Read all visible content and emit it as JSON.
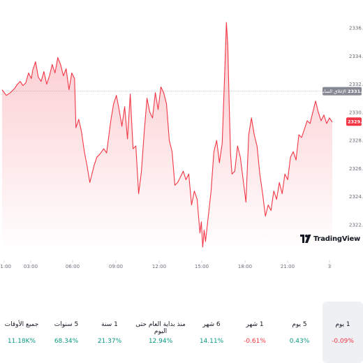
{
  "chart_data": {
    "type": "area",
    "x_ticks": [
      "01:00",
      "03:00",
      "06:00",
      "09:00",
      "12:00",
      "15:00",
      "18:00",
      "21:00",
      "3"
    ],
    "y_ticks": [
      "2322.00",
      "2324.00",
      "2326.00",
      "2328.00",
      "2330.00",
      "2332.00",
      "2334.00",
      "2336.00"
    ],
    "ylim": [
      2320.0,
      2337.0
    ],
    "x": [
      0,
      6,
      12,
      18,
      22,
      26,
      30,
      34,
      38,
      42,
      44,
      48,
      52,
      56,
      60,
      64,
      68,
      72,
      76,
      80,
      84,
      88,
      92,
      96,
      100,
      104,
      106,
      110,
      114,
      118,
      122,
      126,
      128,
      132,
      136,
      140,
      146,
      150,
      156,
      160,
      164,
      168,
      172,
      176,
      180,
      184,
      188,
      192,
      196,
      200,
      204,
      208,
      212,
      216,
      220,
      224,
      228,
      232,
      236,
      240,
      244,
      248,
      252,
      256,
      260,
      264,
      268,
      272,
      276,
      280,
      284,
      286,
      288,
      290,
      292,
      296,
      300,
      304,
      308,
      312,
      316,
      320,
      322,
      324,
      326,
      328,
      330,
      334,
      338,
      342,
      346,
      350,
      354,
      358,
      362,
      366,
      370,
      374,
      378,
      382,
      386,
      390,
      394,
      398,
      402,
      406,
      410,
      414,
      418,
      422,
      426,
      430,
      434,
      438,
      442,
      446,
      450,
      454,
      458,
      462,
      466,
      470,
      474
    ],
    "values": [
      2331.6,
      2331.2,
      2331.4,
      2331.7,
      2332.0,
      2332.2,
      2331.9,
      2332.1,
      2332.8,
      2332.4,
      2333.0,
      2333.6,
      2332.5,
      2332.2,
      2332.9,
      2332.0,
      2332.6,
      2333.4,
      2332.8,
      2333.9,
      2333.4,
      2332.6,
      2333.1,
      2331.6,
      2332.8,
      2332.4,
      2328.9,
      2329.5,
      2328.6,
      2327.2,
      2326.2,
      2325.0,
      2325.4,
      2326.2,
      2326.8,
      2327.0,
      2327.4,
      2327.1,
      2329.4,
      2330.6,
      2331.2,
      2330.2,
      2329.0,
      2330.4,
      2328.1,
      2331.3,
      2327.4,
      2327.6,
      2324.2,
      2325.8,
      2328.6,
      2331.0,
      2330.0,
      2329.6,
      2331.4,
      2330.2,
      2331.8,
      2331.4,
      2330.6,
      2328.0,
      2327.2,
      2324.8,
      2325.0,
      2325.4,
      2325.8,
      2325.2,
      2325.6,
      2323.4,
      2324.4,
      2323.8,
      2321.4,
      2322.2,
      2320.4,
      2321.6,
      2320.8,
      2322.6,
      2324.4,
      2327.2,
      2328.0,
      2326.4,
      2327.8,
      2333.4,
      2336.4,
      2334.8,
      2330.6,
      2327.0,
      2325.6,
      2325.8,
      2327.6,
      2326.8,
      2325.2,
      2323.6,
      2328.4,
      2329.6,
      2328.4,
      2327.6,
      2325.6,
      2324.2,
      2322.6,
      2323.4,
      2323.0,
      2324.4,
      2323.8,
      2325.0,
      2324.2,
      2325.6,
      2325.2,
      2326.8,
      2327.2,
      2326.6,
      2328.4,
      2328.2,
      2328.8,
      2329.4,
      2329.2,
      2330.0,
      2330.8,
      2330.0,
      2329.4,
      2329.8,
      2329.2,
      2329.6,
      2329.3
    ],
    "previous_close": {
      "label": "الإغلاق السابق",
      "value": "2331.50"
    },
    "last_price": "2329.33",
    "line_color": "#f23645",
    "title": "",
    "xlabel": "",
    "ylabel": "",
    "grid": false,
    "axis_position": "right"
  },
  "branding": {
    "logo_text": "TradingView"
  },
  "periods": [
    {
      "label": "1 يوم",
      "value": "-0.09%",
      "trend": "negative",
      "active": true
    },
    {
      "label": "5 يوم",
      "value": "0.43%",
      "trend": "positive",
      "active": false
    },
    {
      "label": "1 شهر",
      "value": "-0.61%",
      "trend": "negative",
      "active": false
    },
    {
      "label": "6 شهر",
      "value": "14.11%",
      "trend": "positive",
      "active": false
    },
    {
      "label": "منذ بداية العام حتى اليوم",
      "value": "12.94%",
      "trend": "positive",
      "active": false
    },
    {
      "label": "1 سنة",
      "value": "21.37%",
      "trend": "positive",
      "active": false
    },
    {
      "label": "5 سنوات",
      "value": "68.34%",
      "trend": "positive",
      "active": false
    },
    {
      "label": "جميع الأوقات",
      "value": "11.18K%",
      "trend": "positive",
      "active": false
    }
  ]
}
